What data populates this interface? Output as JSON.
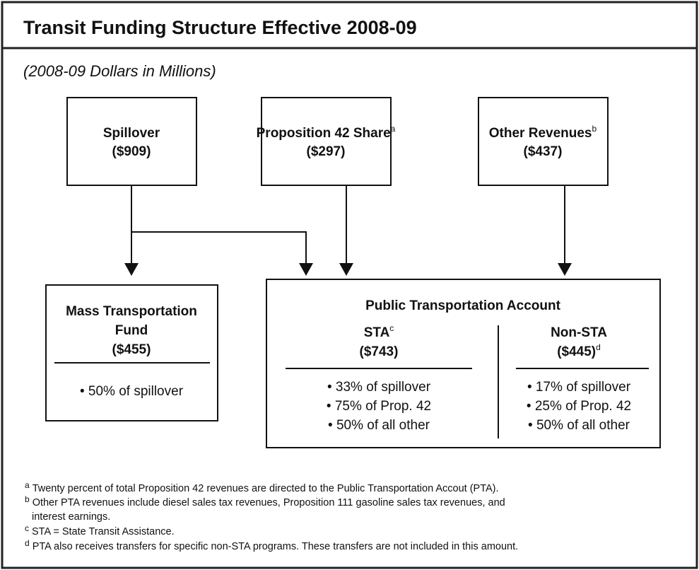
{
  "header": {
    "title": "Transit Funding Structure Effective 2008-09",
    "subtitle": "(2008-09 Dollars in Millions)"
  },
  "sources": [
    {
      "label": "Spillover",
      "amount": "($909)"
    },
    {
      "label": "Proposition 42 Share",
      "note": "a",
      "amount": "($297)"
    },
    {
      "label": "Other Revenues",
      "note": "b",
      "amount": "($437)"
    }
  ],
  "mass_transportation_fund": {
    "label_lines": [
      "Mass Transportation",
      "Fund"
    ],
    "amount": "($455)",
    "bullets": [
      "• 50% of spillover"
    ]
  },
  "public_transportation_account": {
    "title": "Public Transportation Account",
    "sta": {
      "label": "STA",
      "note": "c",
      "amount": "($743)",
      "bullets": [
        "• 33% of spillover",
        "• 75% of Prop. 42",
        "• 50% of all other"
      ]
    },
    "non_sta": {
      "label": "Non-STA",
      "amount": "($445)",
      "note": "d",
      "bullets": [
        "• 17% of spillover",
        "• 25% of Prop. 42",
        "• 50% of all other"
      ]
    }
  },
  "footnotes": [
    {
      "marker": "a",
      "lines": [
        "Twenty percent of total Proposition 42 revenues are directed to the Public Transportation Accout (PTA)."
      ]
    },
    {
      "marker": "b",
      "lines": [
        "Other PTA revenues include diesel sales tax revenues, Proposition 111 gasoline sales tax revenues, and",
        "interest earnings."
      ]
    },
    {
      "marker": "c",
      "lines": [
        "STA = State Transit Assistance."
      ]
    },
    {
      "marker": "d",
      "lines": [
        "PTA also receives transfers for specific non-STA programs. These transfers are not included in this amount."
      ]
    }
  ]
}
